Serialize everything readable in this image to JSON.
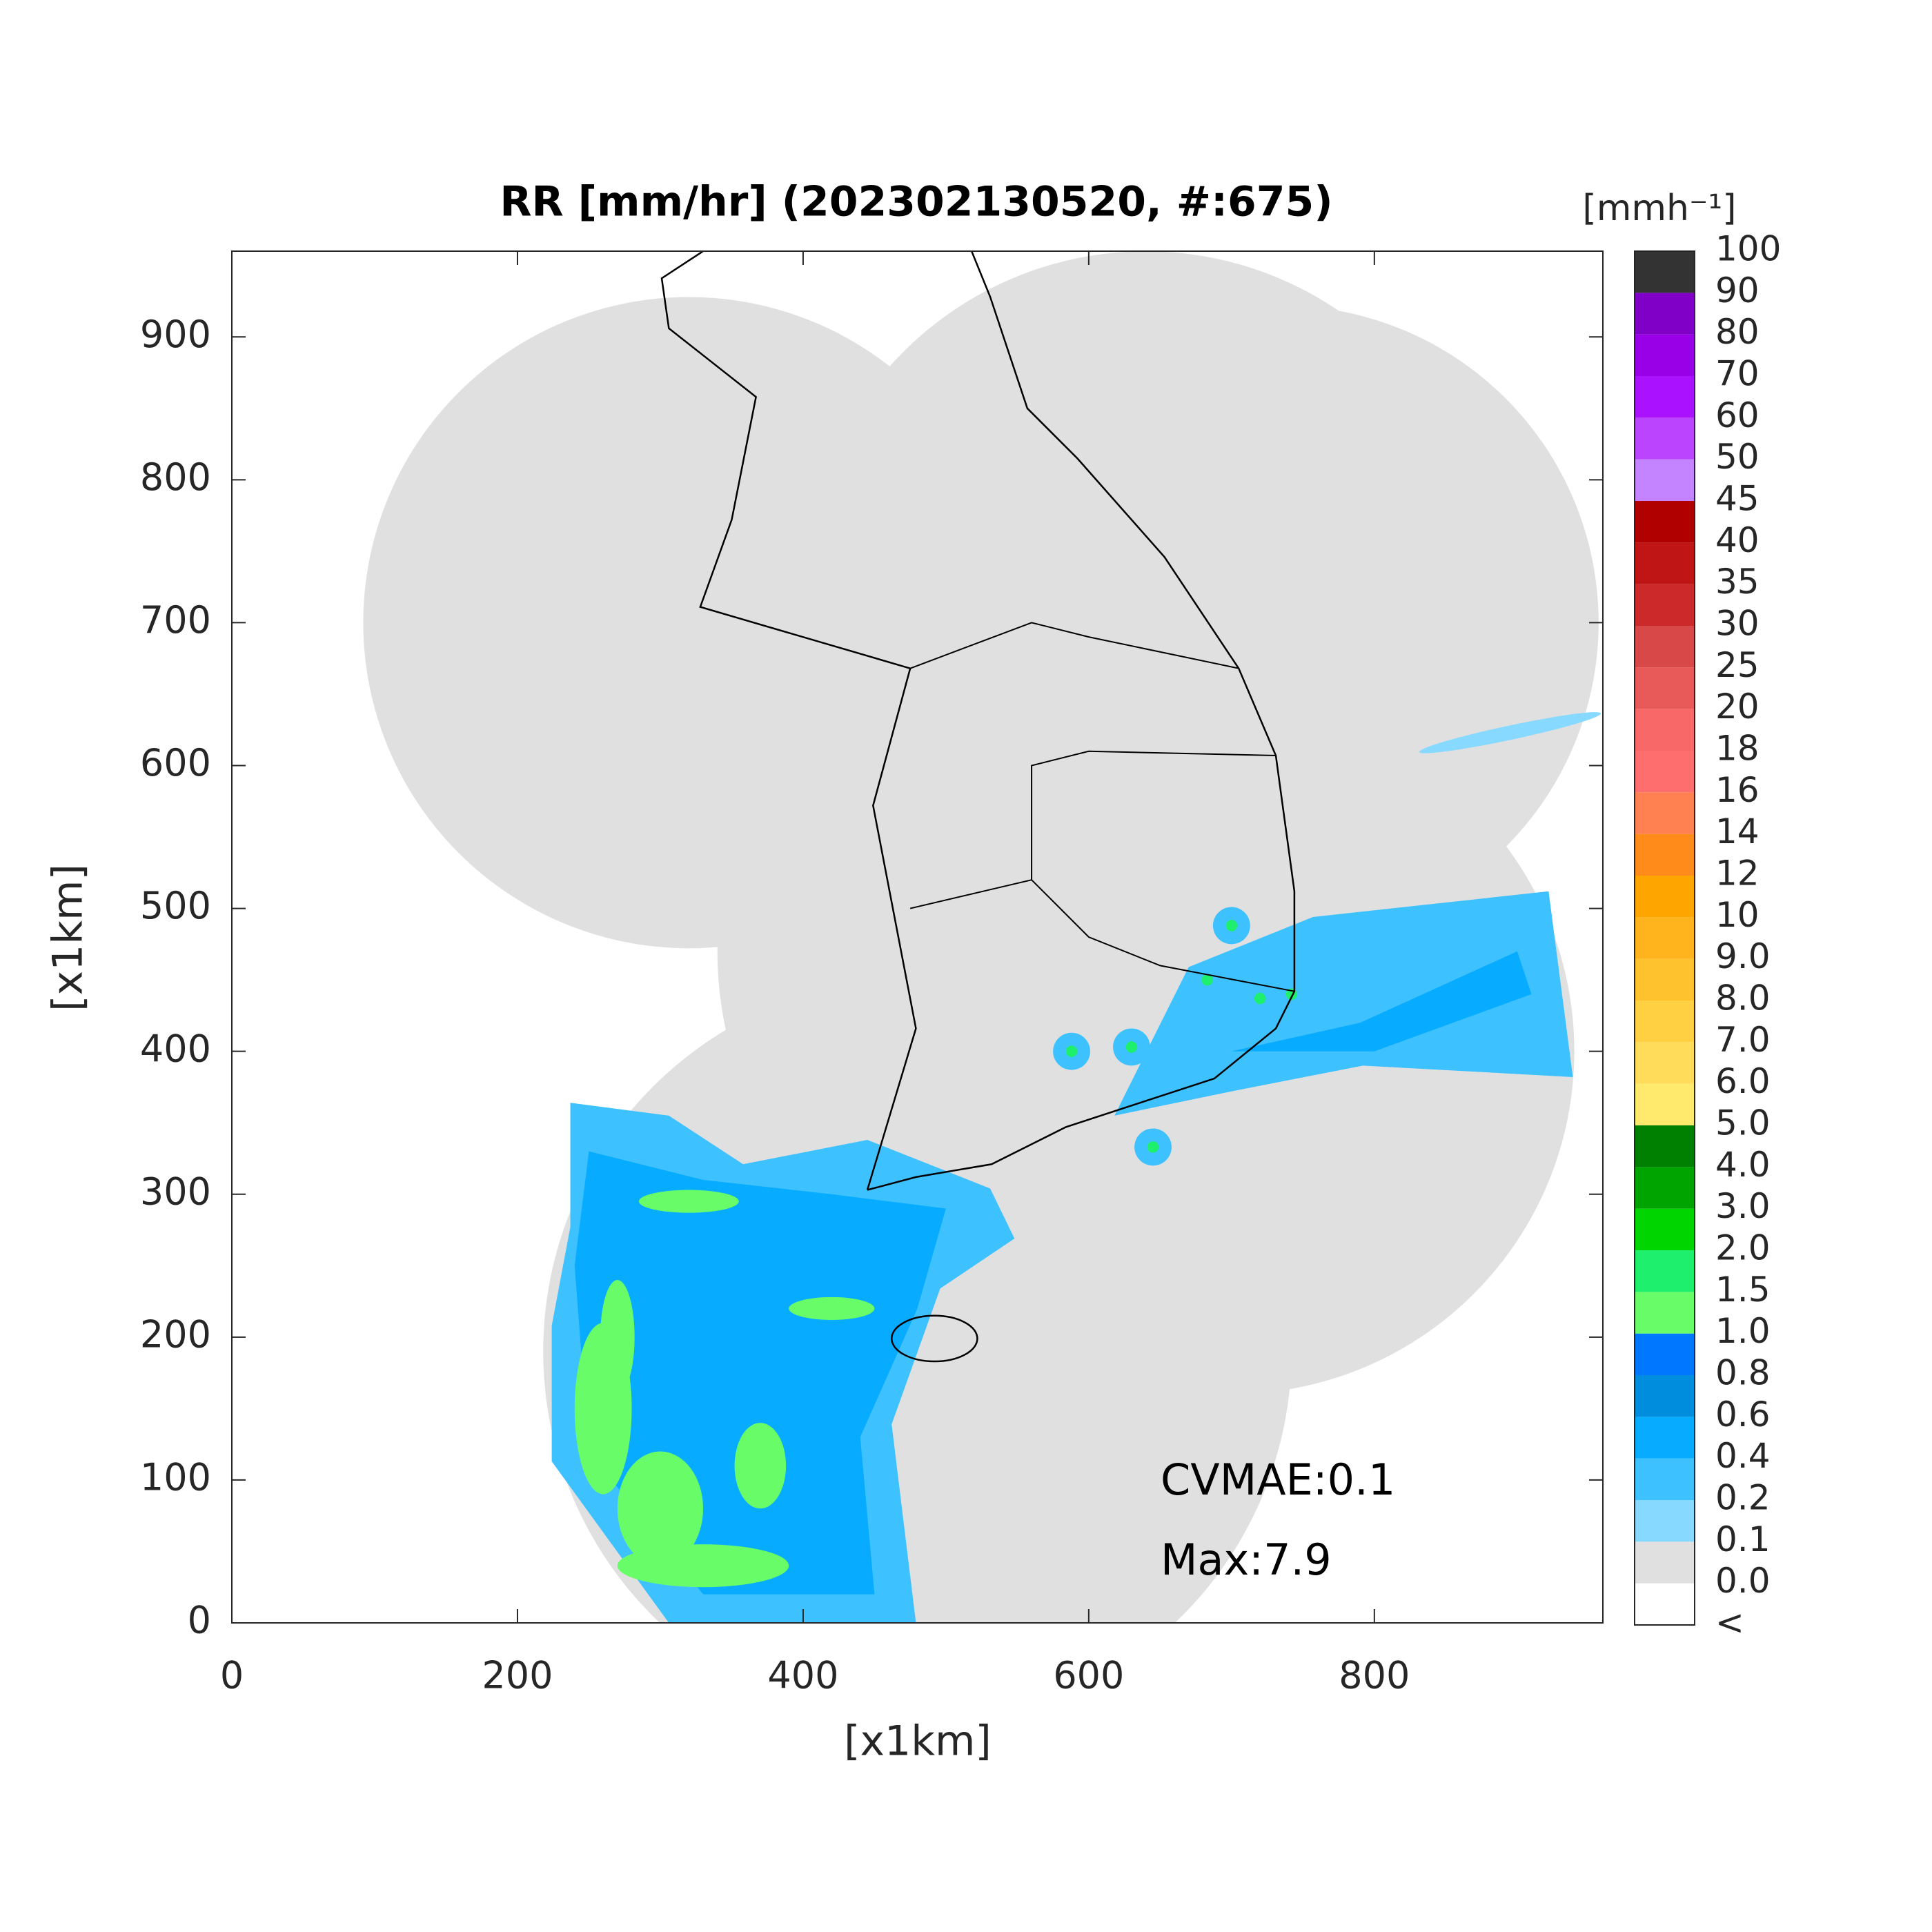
{
  "chart_data": {
    "type": "radar-map",
    "title": "RR [mm/hr] (202302130520, #:675)",
    "xlabel": "[x1km]",
    "ylabel": "[x1km]",
    "xlim": [
      0,
      960
    ],
    "ylim": [
      0,
      960
    ],
    "xticks": [
      0,
      200,
      400,
      600,
      800
    ],
    "yticks": [
      0,
      100,
      200,
      300,
      400,
      500,
      600,
      700,
      800,
      900
    ],
    "annotations": [
      "CVMAE:0.1",
      "Max:7.9"
    ],
    "colorbar": {
      "label": "[mmh⁻¹]",
      "levels": [
        "<",
        "0.0",
        "0.1",
        "0.2",
        "0.4",
        "0.6",
        "0.8",
        "1.0",
        "1.5",
        "2.0",
        "3.0",
        "4.0",
        "5.0",
        "6.0",
        "7.0",
        "8.0",
        "9.0",
        "10",
        "12",
        "14",
        "16",
        "18",
        "20",
        "25",
        "30",
        "35",
        "40",
        "45",
        "50",
        "60",
        "70",
        "80",
        "90",
        "100"
      ],
      "colors": [
        "#ffffff",
        "#e0e0e0",
        "#87d9ff",
        "#3ec1ff",
        "#07abff",
        "#008dde",
        "#0077ff",
        "#69fc69",
        "#1ef06e",
        "#00d500",
        "#00a400",
        "#008000",
        "#ffea6e",
        "#ffdc5a",
        "#ffd042",
        "#ffc22f",
        "#ffb41e",
        "#ffa500",
        "#ff8c1a",
        "#ff8050",
        "#ff6e6e",
        "#f86868",
        "#e85a5a",
        "#d84848",
        "#cc2a2a",
        "#c01515",
        "#b00000",
        "#c483ff",
        "#bb44ff",
        "#aa11ff",
        "#9a00e8",
        "#8000c8",
        "#333333"
      ]
    }
  }
}
